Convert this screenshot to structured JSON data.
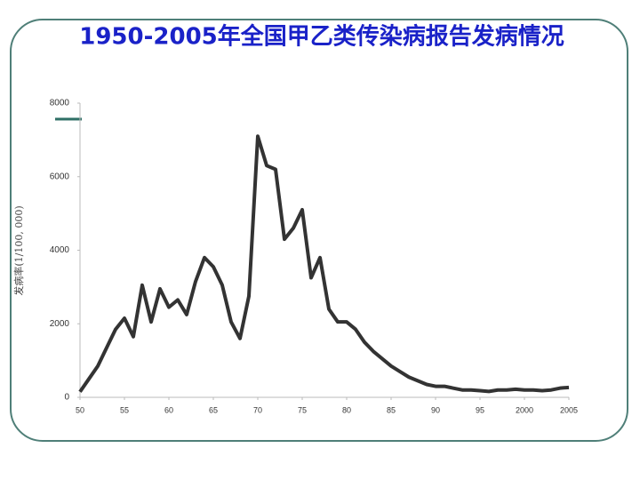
{
  "chart_data": {
    "type": "line",
    "title": "1950-2005年全国甲乙类传染病报告发病情况",
    "y_label": "发病率(1/100, 000)",
    "x": [
      1950,
      1951,
      1952,
      1953,
      1954,
      1955,
      1956,
      1957,
      1958,
      1959,
      1960,
      1961,
      1962,
      1963,
      1964,
      1965,
      1966,
      1967,
      1968,
      1969,
      1970,
      1971,
      1972,
      1973,
      1974,
      1975,
      1976,
      1977,
      1978,
      1979,
      1980,
      1981,
      1982,
      1983,
      1984,
      1985,
      1986,
      1987,
      1988,
      1989,
      1990,
      1991,
      1992,
      1993,
      1994,
      1995,
      1996,
      1997,
      1998,
      1999,
      2000,
      2001,
      2002,
      2003,
      2004,
      2005
    ],
    "series": [
      {
        "color": "#333333",
        "values": [
          150,
          500,
          850,
          1350,
          1850,
          2150,
          1650,
          3050,
          2050,
          2950,
          2450,
          2650,
          2250,
          3150,
          3800,
          3550,
          3050,
          2050,
          1600,
          2750,
          7100,
          6300,
          6200,
          4300,
          4600,
          5100,
          3250,
          3800,
          2400,
          2050,
          2050,
          1850,
          1500,
          1250,
          1050,
          850,
          700,
          550,
          450,
          350,
          300,
          300,
          250,
          200,
          200,
          180,
          160,
          200,
          200,
          220,
          200,
          200,
          180,
          200,
          250,
          270
        ]
      }
    ],
    "xlim": [
      1950,
      2005
    ],
    "xticks": [
      {
        "value": 1950,
        "label": "50"
      },
      {
        "value": 1955,
        "label": "55"
      },
      {
        "value": 1960,
        "label": "60"
      },
      {
        "value": 1965,
        "label": "65"
      },
      {
        "value": 1970,
        "label": "70"
      },
      {
        "value": 1975,
        "label": "75"
      },
      {
        "value": 1980,
        "label": "80"
      },
      {
        "value": 1985,
        "label": "85"
      },
      {
        "value": 1990,
        "label": "90"
      },
      {
        "value": 1995,
        "label": "95"
      },
      2000,
      2005
    ],
    "ylim": [
      0,
      8000
    ],
    "yticks": [
      0,
      2000,
      4000,
      6000,
      8000
    ],
    "grid": false
  }
}
